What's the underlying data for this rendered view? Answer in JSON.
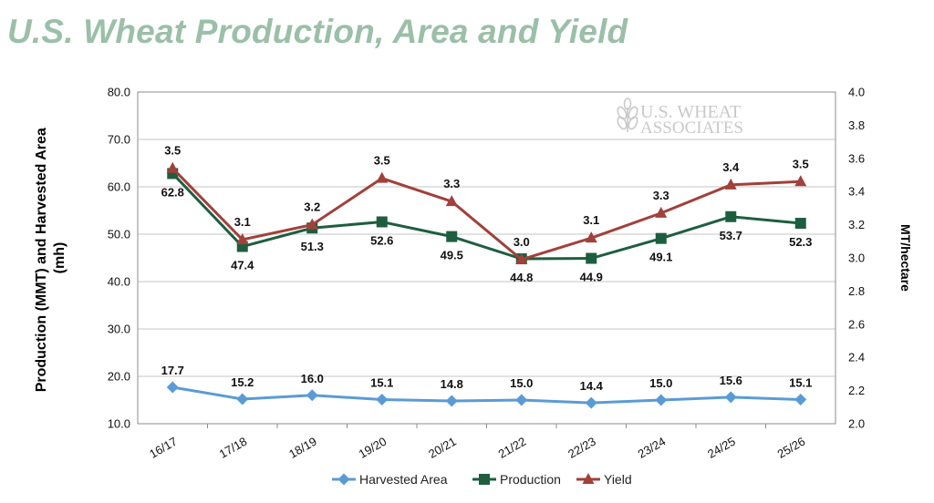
{
  "title": "U.S. Wheat Production, Area and Yield",
  "watermark": {
    "line1": "U.S. WHEAT",
    "line2": "ASSOCIATES"
  },
  "colors": {
    "title": "#9bbfa8",
    "harvested_area": "#5b9bd5",
    "production": "#1e5e3f",
    "yield": "#a0413a",
    "grid": "#d9d9d9"
  },
  "chart_data": {
    "type": "line",
    "categories": [
      "16/17",
      "17/18",
      "18/19",
      "19/20",
      "20/21",
      "21/22",
      "22/23",
      "23/24",
      "24/25",
      "25/26"
    ],
    "y_left": {
      "label": "Production (MMT) and Harvested Area (mh)",
      "ylim": [
        10,
        80
      ],
      "ticks": [
        "10.0",
        "20.0",
        "30.0",
        "40.0",
        "50.0",
        "60.0",
        "70.0",
        "80.0"
      ]
    },
    "y_right": {
      "label": "MT/hectare",
      "ylim": [
        2.0,
        4.0
      ],
      "ticks": [
        "2.0",
        "2.2",
        "2.4",
        "2.6",
        "2.8",
        "3.0",
        "3.2",
        "3.4",
        "3.6",
        "3.8",
        "4.0"
      ]
    },
    "series": [
      {
        "name": "Harvested Area",
        "axis": "left",
        "marker": "diamond",
        "color": "#5b9bd5",
        "values": [
          17.7,
          15.2,
          16.0,
          15.1,
          14.8,
          15.0,
          14.4,
          15.0,
          15.6,
          15.1
        ],
        "labels": [
          "17.7",
          "15.2",
          "16.0",
          "15.1",
          "14.8",
          "15.0",
          "14.4",
          "15.0",
          "15.6",
          "15.1"
        ]
      },
      {
        "name": "Production",
        "axis": "left",
        "marker": "square",
        "color": "#1e5e3f",
        "values": [
          62.8,
          47.4,
          51.3,
          52.6,
          49.5,
          44.8,
          44.9,
          49.1,
          53.7,
          52.3
        ],
        "labels": [
          "62.8",
          "47.4",
          "51.3",
          "52.6",
          "49.5",
          "44.8",
          "44.9",
          "49.1",
          "53.7",
          "52.3"
        ]
      },
      {
        "name": "Yield",
        "axis": "right",
        "marker": "triangle",
        "color": "#a0413a",
        "values": [
          3.54,
          3.11,
          3.2,
          3.48,
          3.34,
          2.99,
          3.12,
          3.27,
          3.44,
          3.46
        ],
        "labels": [
          "3.5",
          "3.1",
          "3.2",
          "3.5",
          "3.3",
          "3.0",
          "3.1",
          "3.3",
          "3.4",
          "3.5"
        ]
      }
    ],
    "legend": "bottom",
    "grid": true
  }
}
